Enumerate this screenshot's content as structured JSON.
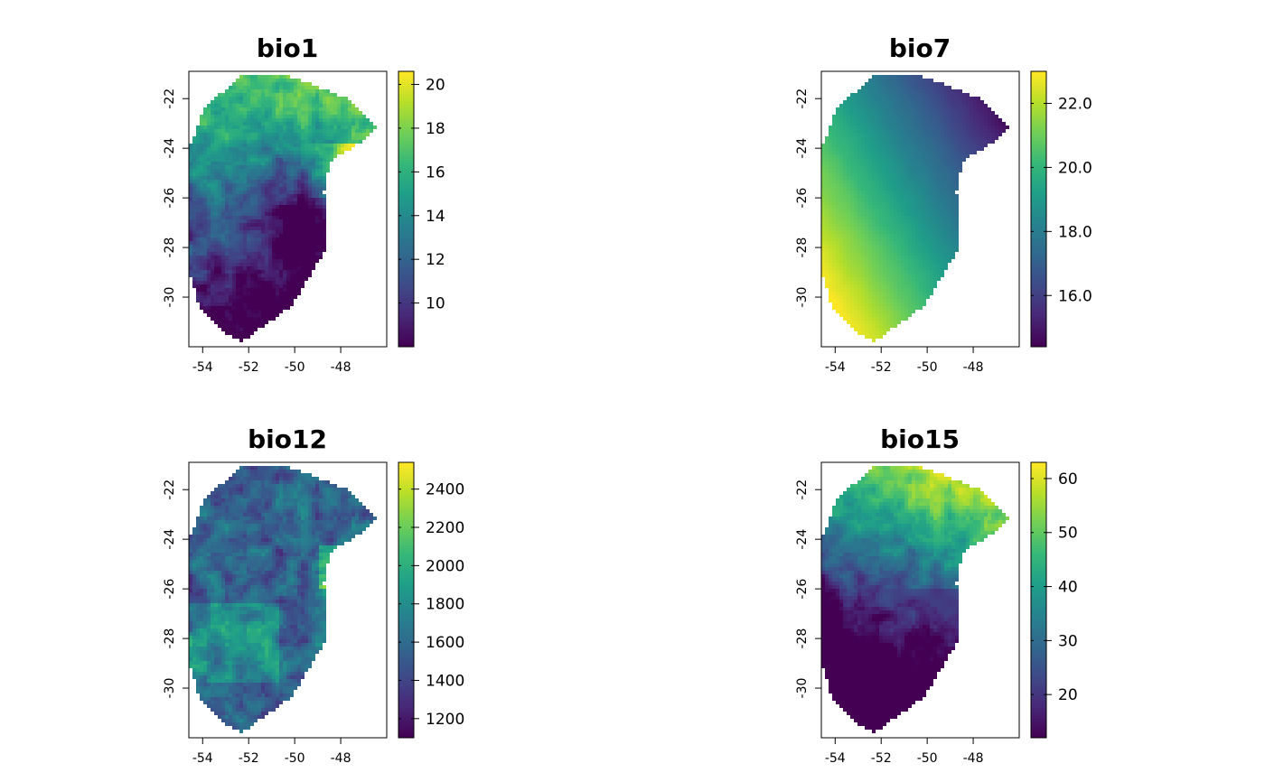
{
  "palette": [
    "#440154",
    "#482878",
    "#3e4a89",
    "#31688e",
    "#26828e",
    "#1f9e89",
    "#35b779",
    "#6ece58",
    "#b5de2b",
    "#fde725"
  ],
  "map_extent": {
    "lon": [
      -54.6,
      -46.0
    ],
    "lat": [
      -32.0,
      -20.9
    ]
  },
  "x_tick_labels": [
    "-54",
    "-52",
    "-50",
    "-48"
  ],
  "x_ticks": [
    -54,
    -52,
    -50,
    -48
  ],
  "y_tick_labels": [
    "-22",
    "-24",
    "-26",
    "-28",
    "-30"
  ],
  "y_ticks": [
    -22,
    -24,
    -26,
    -28,
    -30
  ],
  "chart_data": [
    {
      "type": "heatmap",
      "title": "bio1",
      "value_range": [
        8.0,
        20.6
      ],
      "legend_ticks": [
        10,
        12,
        14,
        16,
        18,
        20
      ],
      "legend_labels": [
        "10",
        "12",
        "14",
        "16",
        "18",
        "20"
      ],
      "pattern": "bio1"
    },
    {
      "type": "heatmap",
      "title": "bio7",
      "value_range": [
        14.4,
        23.0
      ],
      "legend_ticks": [
        16,
        18,
        20,
        22
      ],
      "legend_labels": [
        "16.0",
        "18.0",
        "20.0",
        "22.0"
      ],
      "pattern": "bio7"
    },
    {
      "type": "heatmap",
      "title": "bio12",
      "value_range": [
        1100,
        2540
      ],
      "legend_ticks": [
        1200,
        1400,
        1600,
        1800,
        2000,
        2200,
        2400
      ],
      "legend_labels": [
        "1200",
        "1400",
        "1600",
        "1800",
        "2000",
        "2200",
        "2400"
      ],
      "pattern": "bio12"
    },
    {
      "type": "heatmap",
      "title": "bio15",
      "value_range": [
        12,
        63
      ],
      "legend_ticks": [
        20,
        30,
        40,
        50,
        60
      ],
      "legend_labels": [
        "20",
        "30",
        "40",
        "50",
        "60"
      ],
      "pattern": "bio15"
    }
  ]
}
